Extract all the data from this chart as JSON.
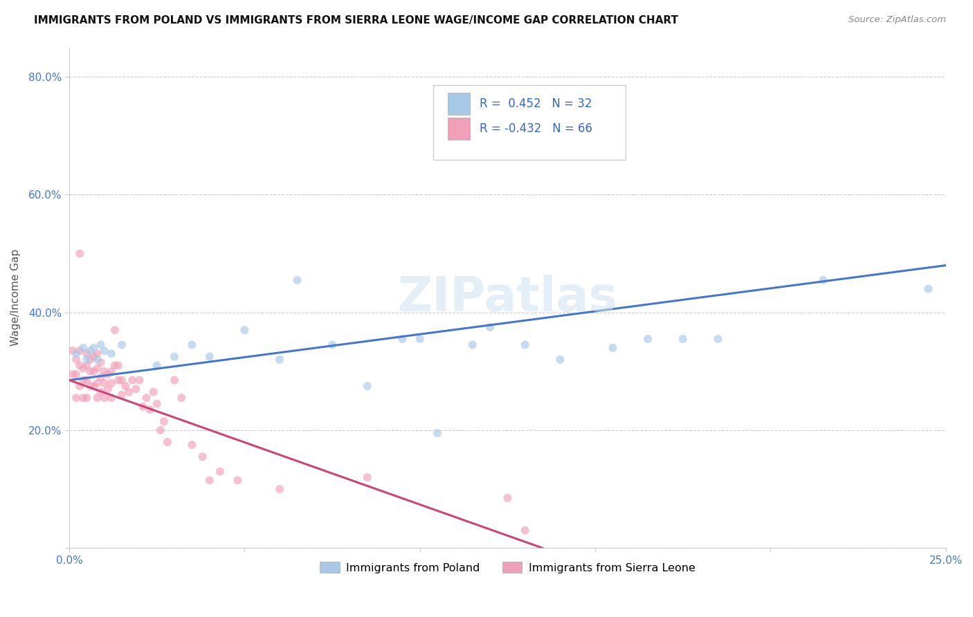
{
  "title": "IMMIGRANTS FROM POLAND VS IMMIGRANTS FROM SIERRA LEONE WAGE/INCOME GAP CORRELATION CHART",
  "source": "Source: ZipAtlas.com",
  "ylabel": "Wage/Income Gap",
  "xlim": [
    0.0,
    0.25
  ],
  "ylim": [
    0.0,
    0.85
  ],
  "bg_color": "#ffffff",
  "grid_color": "#cccccc",
  "poland_color": "#a8c8e8",
  "poland_line_color": "#4477cc",
  "sierra_leone_color": "#f0a0b8",
  "sierra_leone_line_color": "#cc4477",
  "legend_R_poland": " 0.452",
  "legend_N_poland": "32",
  "legend_R_sierra": "-0.432",
  "legend_N_sierra": "66",
  "poland_x": [
    0.002,
    0.004,
    0.005,
    0.006,
    0.007,
    0.008,
    0.009,
    0.01,
    0.012,
    0.015,
    0.025,
    0.03,
    0.035,
    0.04,
    0.05,
    0.06,
    0.065,
    0.075,
    0.085,
    0.095,
    0.1,
    0.105,
    0.115,
    0.12,
    0.13,
    0.14,
    0.155,
    0.165,
    0.175,
    0.185,
    0.215,
    0.245
  ],
  "poland_y": [
    0.33,
    0.34,
    0.32,
    0.335,
    0.34,
    0.32,
    0.345,
    0.335,
    0.33,
    0.345,
    0.31,
    0.325,
    0.345,
    0.325,
    0.37,
    0.32,
    0.455,
    0.345,
    0.275,
    0.355,
    0.355,
    0.195,
    0.345,
    0.375,
    0.345,
    0.32,
    0.34,
    0.355,
    0.355,
    0.355,
    0.455,
    0.44
  ],
  "sierra_leone_x": [
    0.001,
    0.001,
    0.002,
    0.002,
    0.002,
    0.003,
    0.003,
    0.003,
    0.004,
    0.004,
    0.004,
    0.005,
    0.005,
    0.005,
    0.005,
    0.006,
    0.006,
    0.006,
    0.007,
    0.007,
    0.007,
    0.008,
    0.008,
    0.008,
    0.008,
    0.009,
    0.009,
    0.009,
    0.01,
    0.01,
    0.01,
    0.011,
    0.011,
    0.012,
    0.012,
    0.012,
    0.013,
    0.013,
    0.014,
    0.014,
    0.015,
    0.015,
    0.016,
    0.017,
    0.018,
    0.019,
    0.02,
    0.021,
    0.022,
    0.023,
    0.024,
    0.025,
    0.026,
    0.027,
    0.028,
    0.03,
    0.032,
    0.035,
    0.038,
    0.04,
    0.043,
    0.048,
    0.06,
    0.085,
    0.125,
    0.13
  ],
  "sierra_leone_y": [
    0.335,
    0.295,
    0.32,
    0.295,
    0.255,
    0.335,
    0.31,
    0.275,
    0.305,
    0.285,
    0.255,
    0.33,
    0.31,
    0.285,
    0.255,
    0.32,
    0.3,
    0.275,
    0.325,
    0.3,
    0.275,
    0.33,
    0.305,
    0.28,
    0.255,
    0.315,
    0.29,
    0.265,
    0.3,
    0.28,
    0.255,
    0.295,
    0.27,
    0.3,
    0.28,
    0.255,
    0.37,
    0.31,
    0.31,
    0.285,
    0.285,
    0.26,
    0.275,
    0.265,
    0.285,
    0.27,
    0.285,
    0.24,
    0.255,
    0.235,
    0.265,
    0.245,
    0.2,
    0.215,
    0.18,
    0.285,
    0.255,
    0.175,
    0.155,
    0.115,
    0.13,
    0.115,
    0.1,
    0.12,
    0.085,
    0.03
  ],
  "sierra_leone_outlier_x": [
    0.003
  ],
  "sierra_leone_outlier_y": [
    0.5
  ],
  "watermark": "ZIPatlas",
  "marker_size": 75,
  "marker_alpha": 0.65,
  "line_width": 2.2
}
